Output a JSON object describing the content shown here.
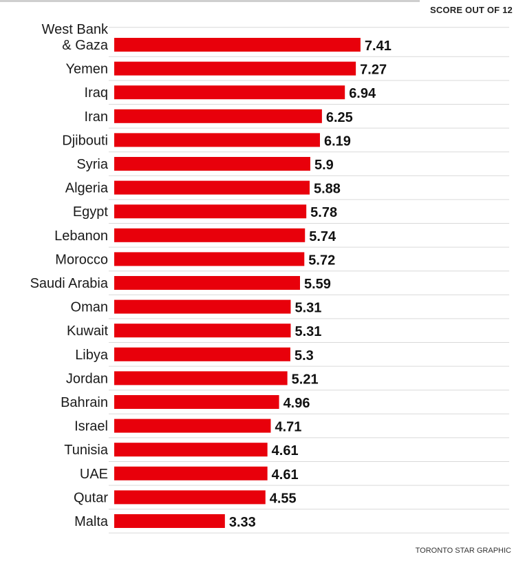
{
  "chart_data": {
    "type": "bar",
    "orientation": "horizontal",
    "unit_label": "SCORE OUT OF 12",
    "categories": [
      "West Bank & Gaza",
      "Yemen",
      "Iraq",
      "Iran",
      "Djibouti",
      "Syria",
      "Algeria",
      "Egypt",
      "Lebanon",
      "Morocco",
      "Saudi Arabia",
      "Oman",
      "Kuwait",
      "Libya",
      "Jordan",
      "Bahrain",
      "Israel",
      "Tunisia",
      "UAE",
      "Qutar",
      "Malta"
    ],
    "values": [
      7.41,
      7.27,
      6.94,
      6.25,
      6.19,
      5.9,
      5.88,
      5.78,
      5.74,
      5.72,
      5.59,
      5.31,
      5.31,
      5.3,
      5.21,
      4.96,
      4.71,
      4.61,
      4.61,
      4.55,
      3.33
    ],
    "value_labels": [
      "7.41",
      "7.27",
      "6.94",
      "6.25",
      "6.19",
      "5.9",
      "5.88",
      "5.78",
      "5.74",
      "5.72",
      "5.59",
      "5.31",
      "5.31",
      "5.3",
      "5.21",
      "4.96",
      "4.71",
      "4.61",
      "4.61",
      "4.55",
      "3.33"
    ],
    "bar_color": "#e8000b",
    "grid": false,
    "legend": "none"
  },
  "credit": "TORONTO STAR GRAPHIC"
}
